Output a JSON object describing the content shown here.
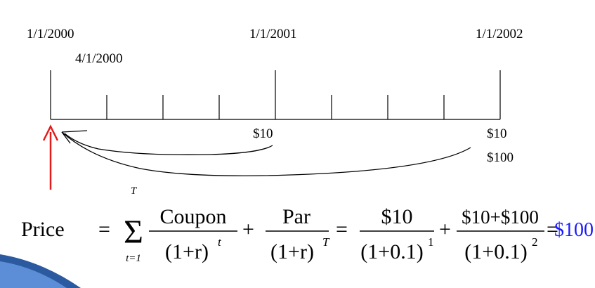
{
  "timeline": {
    "dates": [
      "1/1/2000",
      "4/1/2000",
      "1/1/2001",
      "1/1/2002"
    ],
    "cash_flows": [
      "$10",
      "$10",
      "$100"
    ]
  },
  "formula": {
    "lhs": "Price",
    "eq1": "=",
    "sum_upper": "T",
    "sum_symbol": "Σ",
    "sum_lower": "t=1",
    "term1": {
      "numerator": "Coupon",
      "denominator": "(1+r)",
      "exponent": "t"
    },
    "plus1": "+",
    "term2": {
      "numerator": "Par",
      "denominator": "(1+r)",
      "exponent": "T"
    },
    "eq2": "=",
    "term3": {
      "numerator": "$10",
      "denominator": "(1+0.1)",
      "exponent": "1"
    },
    "plus2": "+",
    "term4": {
      "numerator": "$10+$100",
      "denominator": "(1+0.1)",
      "exponent": "2"
    },
    "eq3": "=",
    "result": "$100"
  }
}
